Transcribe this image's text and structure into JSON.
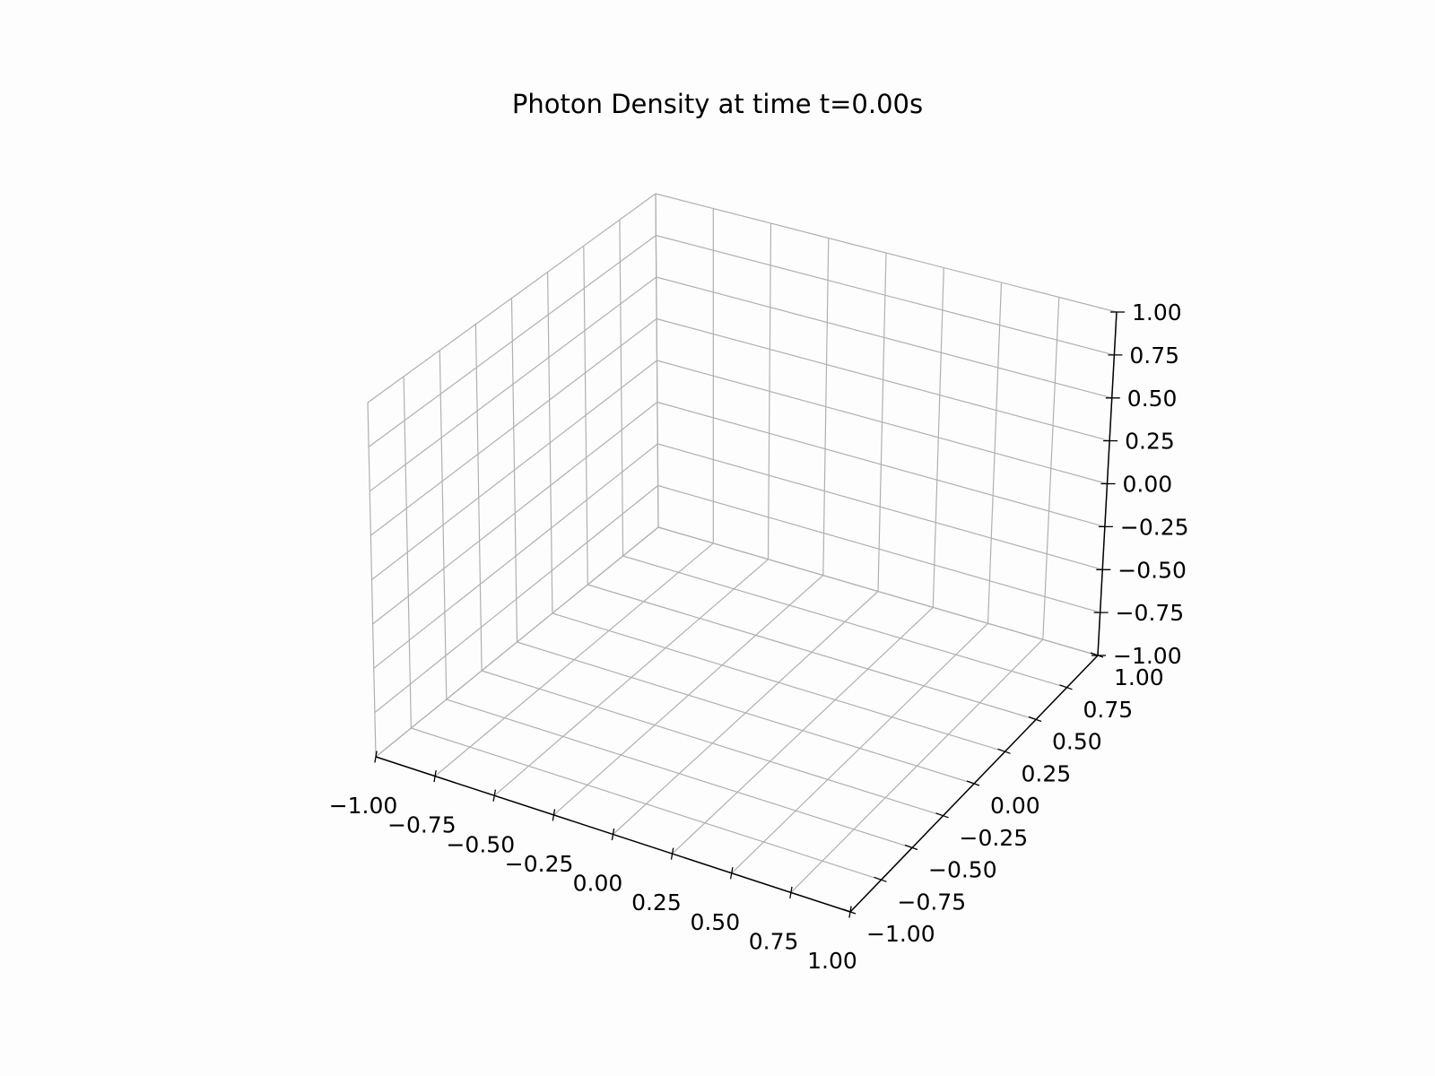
{
  "chart_data": {
    "type": "scatter",
    "projection": "3d",
    "title": "Photon Density at time t=0.00s",
    "xlabel": "",
    "ylabel": "",
    "zlabel": "",
    "xlim": [
      -1.0,
      1.0
    ],
    "ylim": [
      -1.0,
      1.0
    ],
    "zlim": [
      -1.0,
      1.0
    ],
    "grid": true,
    "series": [
      {
        "x": [],
        "y": [],
        "z": []
      }
    ],
    "ticks": {
      "x": [
        "−1.00",
        "−0.75",
        "−0.50",
        "−0.25",
        "0.00",
        "0.25",
        "0.50",
        "0.75",
        "1.00"
      ],
      "y": [
        "−1.00",
        "−0.75",
        "−0.50",
        "−0.25",
        "0.00",
        "0.25",
        "0.50",
        "0.75",
        "1.00"
      ],
      "z": [
        "−1.00",
        "−0.75",
        "−0.50",
        "−0.25",
        "0.00",
        "0.25",
        "0.50",
        "0.75",
        "1.00"
      ]
    },
    "colors": {
      "grid": "#b0b0b0",
      "axis": "#000000",
      "background": "#fdfdfd"
    }
  }
}
